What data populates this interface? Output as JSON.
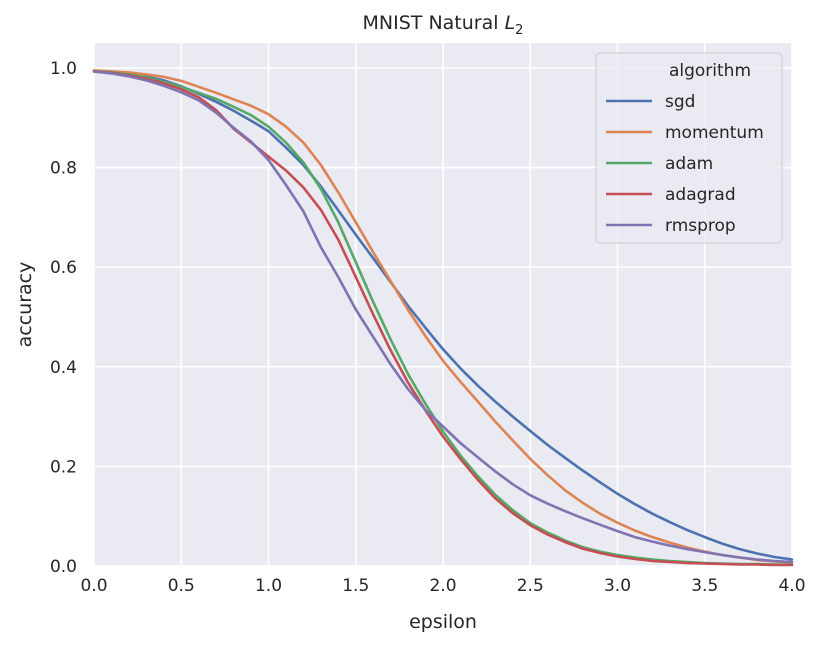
{
  "chart_data": {
    "type": "line",
    "title_main": "MNIST Natural ",
    "title_math": "L",
    "title_sub": "2",
    "xlabel": "epsilon",
    "ylabel": "accuracy",
    "xlim": [
      0.0,
      4.0
    ],
    "ylim": [
      0.0,
      1.05
    ],
    "x_ticks": [
      0.0,
      0.5,
      1.0,
      1.5,
      2.0,
      2.5,
      3.0,
      3.5,
      4.0
    ],
    "x_tick_labels": [
      "0.0",
      "0.5",
      "1.0",
      "1.5",
      "2.0",
      "2.5",
      "3.0",
      "3.5",
      "4.0"
    ],
    "y_ticks": [
      0.0,
      0.2,
      0.4,
      0.6,
      0.8,
      1.0
    ],
    "y_tick_labels": [
      "0.0",
      "0.2",
      "0.4",
      "0.6",
      "0.8",
      "1.0"
    ],
    "grid": true,
    "legend": {
      "title": "algorithm",
      "placement": "top-right"
    },
    "x": [
      0.0,
      0.1,
      0.2,
      0.3,
      0.4,
      0.5,
      0.6,
      0.7,
      0.8,
      0.9,
      1.0,
      1.1,
      1.2,
      1.3,
      1.4,
      1.5,
      1.6,
      1.7,
      1.8,
      1.9,
      2.0,
      2.1,
      2.2,
      2.3,
      2.4,
      2.5,
      2.6,
      2.7,
      2.8,
      2.9,
      3.0,
      3.1,
      3.2,
      3.3,
      3.4,
      3.5,
      3.6,
      3.7,
      3.8,
      3.9,
      4.0
    ],
    "series": [
      {
        "name": "sgd",
        "color": "#4c72b0",
        "values": [
          0.993,
          0.991,
          0.988,
          0.983,
          0.975,
          0.963,
          0.948,
          0.932,
          0.914,
          0.894,
          0.873,
          0.84,
          0.805,
          0.762,
          0.714,
          0.665,
          0.618,
          0.57,
          0.522,
          0.478,
          0.435,
          0.397,
          0.362,
          0.33,
          0.3,
          0.271,
          0.243,
          0.217,
          0.192,
          0.168,
          0.145,
          0.124,
          0.105,
          0.088,
          0.072,
          0.058,
          0.045,
          0.034,
          0.025,
          0.018,
          0.013
        ]
      },
      {
        "name": "momentum",
        "color": "#dd8452",
        "values": [
          0.995,
          0.993,
          0.991,
          0.987,
          0.982,
          0.974,
          0.962,
          0.95,
          0.937,
          0.924,
          0.907,
          0.882,
          0.85,
          0.805,
          0.75,
          0.69,
          0.63,
          0.572,
          0.514,
          0.461,
          0.412,
          0.37,
          0.33,
          0.29,
          0.252,
          0.215,
          0.182,
          0.152,
          0.127,
          0.105,
          0.087,
          0.071,
          0.058,
          0.047,
          0.037,
          0.029,
          0.022,
          0.017,
          0.012,
          0.009,
          0.007
        ]
      },
      {
        "name": "adam",
        "color": "#55a868",
        "values": [
          0.993,
          0.991,
          0.987,
          0.981,
          0.972,
          0.962,
          0.95,
          0.938,
          0.922,
          0.905,
          0.882,
          0.85,
          0.81,
          0.757,
          0.69,
          0.61,
          0.53,
          0.455,
          0.385,
          0.325,
          0.27,
          0.222,
          0.18,
          0.143,
          0.112,
          0.086,
          0.067,
          0.051,
          0.038,
          0.029,
          0.022,
          0.017,
          0.013,
          0.01,
          0.008,
          0.006,
          0.005,
          0.004,
          0.004,
          0.003,
          0.003
        ]
      },
      {
        "name": "adagrad",
        "color": "#c44e52",
        "values": [
          0.993,
          0.99,
          0.985,
          0.978,
          0.969,
          0.957,
          0.941,
          0.915,
          0.878,
          0.85,
          0.822,
          0.794,
          0.76,
          0.715,
          0.655,
          0.58,
          0.505,
          0.433,
          0.368,
          0.312,
          0.26,
          0.215,
          0.173,
          0.136,
          0.106,
          0.082,
          0.063,
          0.048,
          0.035,
          0.026,
          0.019,
          0.014,
          0.01,
          0.008,
          0.006,
          0.005,
          0.004,
          0.003,
          0.003,
          0.002,
          0.002
        ]
      },
      {
        "name": "rmsprop",
        "color": "#8172b2",
        "values": [
          0.993,
          0.989,
          0.983,
          0.975,
          0.964,
          0.951,
          0.935,
          0.91,
          0.88,
          0.852,
          0.815,
          0.765,
          0.712,
          0.64,
          0.58,
          0.515,
          0.46,
          0.405,
          0.355,
          0.313,
          0.28,
          0.247,
          0.218,
          0.19,
          0.164,
          0.142,
          0.125,
          0.11,
          0.096,
          0.083,
          0.07,
          0.058,
          0.049,
          0.041,
          0.034,
          0.028,
          0.022,
          0.017,
          0.013,
          0.01,
          0.008
        ]
      }
    ]
  }
}
